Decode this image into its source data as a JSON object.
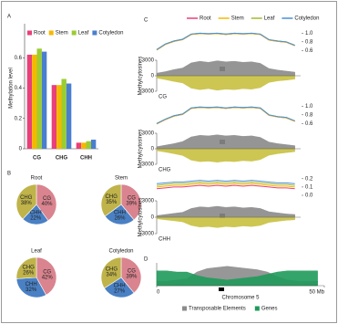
{
  "chart_data": [
    {
      "type": "bar",
      "panel": "A",
      "ylabel": "Methylation level",
      "categories": [
        "CG",
        "CHG",
        "CHH"
      ],
      "series": [
        {
          "name": "Root",
          "color": "#e8407a",
          "values": [
            0.62,
            0.42,
            0.04
          ]
        },
        {
          "name": "Stem",
          "color": "#f5b800",
          "values": [
            0.62,
            0.42,
            0.04
          ]
        },
        {
          "name": "Leaf",
          "color": "#9acd32",
          "values": [
            0.66,
            0.46,
            0.05
          ]
        },
        {
          "name": "Cotyledon",
          "color": "#4a7fcf",
          "values": [
            0.64,
            0.43,
            0.06
          ]
        }
      ],
      "ylim": [
        0,
        0.8
      ],
      "yticks": [
        0,
        0.2,
        0.4,
        0.6
      ]
    },
    {
      "type": "pie",
      "panel": "B",
      "title": "Root",
      "categories": [
        "CG",
        "CHH",
        "CHG"
      ],
      "values": [
        40,
        22,
        38
      ],
      "value_labels": [
        "40%",
        "22%",
        "38%"
      ],
      "colors": [
        "#d9848f",
        "#4a80c4",
        "#bfb34a"
      ]
    },
    {
      "type": "pie",
      "title": "Stem",
      "categories": [
        "CG",
        "CHH",
        "CHG"
      ],
      "values": [
        39,
        26,
        35
      ],
      "value_labels": [
        "39%",
        "26%",
        "35%"
      ],
      "colors": [
        "#d9848f",
        "#4a80c4",
        "#bfb34a"
      ]
    },
    {
      "type": "pie",
      "title": "Leaf",
      "categories": [
        "CG",
        "CHH",
        "CHG"
      ],
      "values": [
        42,
        32,
        26
      ],
      "value_labels": [
        "42%",
        "32%",
        "26%"
      ],
      "colors": [
        "#d9848f",
        "#4a80c4",
        "#bfb34a"
      ]
    },
    {
      "type": "pie",
      "title": "Cotyledon",
      "categories": [
        "CG",
        "CHH",
        "CHG"
      ],
      "values": [
        39,
        27,
        34
      ],
      "value_labels": [
        "39%",
        "27%",
        "34%"
      ],
      "colors": [
        "#d9848f",
        "#4a80c4",
        "#bfb34a"
      ]
    },
    {
      "type": "line",
      "panel": "C",
      "x": [
        0,
        3,
        6,
        9,
        12,
        15,
        18,
        21,
        24,
        27,
        30,
        33,
        36,
        39,
        42,
        45,
        48
      ],
      "xlim": [
        0,
        50
      ],
      "series": [
        {
          "name": "Root",
          "color": "#e8407a",
          "values": [
            0.61,
            0.74,
            0.81,
            0.85,
            0.97,
            0.99,
            0.98,
            0.99,
            0.97,
            0.99,
            0.98,
            0.99,
            0.97,
            0.84,
            0.81,
            0.79,
            0.71
          ]
        },
        {
          "name": "Stem",
          "color": "#f5b800",
          "values": [
            0.61,
            0.74,
            0.81,
            0.85,
            0.97,
            0.99,
            0.98,
            0.99,
            0.97,
            0.99,
            0.98,
            0.99,
            0.97,
            0.84,
            0.81,
            0.79,
            0.71
          ]
        },
        {
          "name": "Leaf",
          "color": "#a8b830",
          "values": [
            0.62,
            0.75,
            0.82,
            0.86,
            0.98,
            1.0,
            0.99,
            1.0,
            0.98,
            1.0,
            0.99,
            1.0,
            0.98,
            0.85,
            0.82,
            0.8,
            0.72
          ]
        },
        {
          "name": "Cotyledon",
          "color": "#4a8fd9",
          "values": [
            0.62,
            0.75,
            0.82,
            0.86,
            0.98,
            1.0,
            0.99,
            1.0,
            0.98,
            1.0,
            0.99,
            1.0,
            0.98,
            0.85,
            0.82,
            0.8,
            0.72
          ]
        }
      ],
      "ylim": [
        0.5,
        1.05
      ],
      "yticks": [
        0.6,
        0.8,
        {
          "value": 1,
          "label": "1.0"
        }
      ]
    },
    {
      "type": "area",
      "title": "CG",
      "ylabel": "Methylcytosines",
      "x": [
        0,
        3,
        6,
        9,
        12,
        15,
        18,
        21,
        24,
        27,
        30,
        33,
        36,
        39,
        42,
        45,
        48
      ],
      "xlim": [
        0,
        50
      ],
      "series": [
        {
          "color": "#8a8a8a",
          "values": [
            500,
            800,
            1200,
            1500,
            2500,
            2800,
            2600,
            2900,
            2700,
            2800,
            2600,
            2700,
            2400,
            1400,
            1100,
            900,
            700
          ]
        },
        {
          "color": "#c8c040",
          "values": [
            -450,
            -750,
            -1100,
            -1400,
            -2400,
            -2700,
            -2500,
            -2800,
            -2600,
            -2700,
            -2500,
            -2600,
            -2300,
            -1300,
            -1000,
            -850,
            -650
          ]
        }
      ],
      "ylim": [
        -3000,
        3000
      ],
      "yticks": [
        3000,
        0,
        -3000
      ]
    },
    {
      "type": "line",
      "x": [
        0,
        3,
        6,
        9,
        12,
        15,
        18,
        21,
        24,
        27,
        30,
        33,
        36,
        39,
        42,
        45,
        48
      ],
      "xlim": [
        0,
        50
      ],
      "series": [
        {
          "color": "#e8407a",
          "values": [
            0.59,
            0.69,
            0.77,
            0.81,
            0.95,
            0.97,
            0.96,
            0.97,
            0.95,
            0.97,
            0.96,
            0.97,
            0.95,
            0.79,
            0.75,
            0.73,
            0.65
          ]
        },
        {
          "color": "#f5b800",
          "values": [
            0.59,
            0.69,
            0.77,
            0.81,
            0.95,
            0.97,
            0.96,
            0.97,
            0.95,
            0.97,
            0.96,
            0.97,
            0.95,
            0.79,
            0.75,
            0.73,
            0.65
          ]
        },
        {
          "color": "#a8b830",
          "values": [
            0.6,
            0.7,
            0.78,
            0.82,
            0.96,
            0.98,
            0.97,
            0.98,
            0.96,
            0.98,
            0.97,
            0.98,
            0.96,
            0.8,
            0.76,
            0.74,
            0.66
          ]
        },
        {
          "color": "#4a8fd9",
          "values": [
            0.6,
            0.7,
            0.78,
            0.82,
            0.96,
            0.98,
            0.97,
            0.98,
            0.96,
            0.98,
            0.97,
            0.98,
            0.96,
            0.8,
            0.76,
            0.74,
            0.66
          ]
        }
      ],
      "ylim": [
        0.5,
        1.05
      ],
      "yticks": [
        0.6,
        0.8,
        {
          "value": 1,
          "label": "1.0"
        }
      ]
    },
    {
      "type": "area",
      "title": "CHG",
      "ylabel": "Methylcytosines",
      "x": [
        0,
        3,
        6,
        9,
        12,
        15,
        18,
        21,
        24,
        27,
        30,
        33,
        36,
        39,
        42,
        45,
        48
      ],
      "xlim": [
        0,
        50
      ],
      "series": [
        {
          "color": "#8a8a8a",
          "values": [
            400,
            700,
            1000,
            1400,
            2300,
            2600,
            2500,
            2700,
            2500,
            2600,
            2400,
            2500,
            2200,
            1300,
            1000,
            800,
            600
          ]
        },
        {
          "color": "#c8c040",
          "values": [
            -380,
            -650,
            -950,
            -1300,
            -2200,
            -2500,
            -2400,
            -2600,
            -2400,
            -2500,
            -2300,
            -2400,
            -2100,
            -1250,
            -950,
            -750,
            -560
          ]
        }
      ],
      "ylim": [
        -3000,
        3000
      ],
      "yticks": [
        3000,
        0,
        -3000
      ]
    },
    {
      "type": "line",
      "x": [
        0,
        3,
        6,
        9,
        12,
        15,
        18,
        21,
        24,
        27,
        30,
        33,
        36,
        39,
        42,
        45,
        48
      ],
      "xlim": [
        0,
        50
      ],
      "series": [
        {
          "color": "#e8407a",
          "values": [
            0.08,
            0.09,
            0.1,
            0.1,
            0.11,
            0.12,
            0.11,
            0.12,
            0.11,
            0.12,
            0.11,
            0.12,
            0.11,
            0.1,
            0.09,
            0.09,
            0.08
          ]
        },
        {
          "color": "#f5b800",
          "values": [
            0.1,
            0.11,
            0.12,
            0.12,
            0.13,
            0.14,
            0.13,
            0.14,
            0.13,
            0.14,
            0.13,
            0.14,
            0.13,
            0.12,
            0.11,
            0.11,
            0.1
          ]
        },
        {
          "color": "#a8b830",
          "values": [
            0.12,
            0.13,
            0.14,
            0.14,
            0.15,
            0.16,
            0.15,
            0.16,
            0.15,
            0.16,
            0.15,
            0.16,
            0.15,
            0.14,
            0.13,
            0.13,
            0.12
          ]
        },
        {
          "color": "#4a8fd9",
          "values": [
            0.14,
            0.15,
            0.16,
            0.16,
            0.17,
            0.18,
            0.17,
            0.18,
            0.17,
            0.18,
            0.17,
            0.18,
            0.17,
            0.16,
            0.15,
            0.15,
            0.14
          ]
        }
      ],
      "ylim": [
        0,
        0.22
      ],
      "yticks": [
        {
          "value": 0,
          "label": "0.0"
        },
        0.1,
        0.2
      ]
    },
    {
      "type": "area",
      "title": "CHH",
      "ylabel": "Methylcytosines",
      "x": [
        0,
        3,
        6,
        9,
        12,
        15,
        18,
        21,
        24,
        27,
        30,
        33,
        36,
        39,
        42,
        45,
        48
      ],
      "xlim": [
        0,
        50
      ],
      "series": [
        {
          "color": "#8a8a8a",
          "values": [
            300,
            500,
            700,
            900,
            1600,
            1900,
            1800,
            2000,
            1800,
            1900,
            1700,
            1800,
            1600,
            1000,
            800,
            600,
            500
          ]
        },
        {
          "color": "#c8c040",
          "values": [
            -280,
            -480,
            -650,
            -850,
            -1500,
            -1800,
            -1700,
            -1900,
            -1700,
            -1800,
            -1600,
            -1700,
            -1500,
            -950,
            -750,
            -560,
            -470
          ]
        }
      ],
      "ylim": [
        -3000,
        3000
      ],
      "yticks": [
        3000,
        0,
        -3000
      ]
    },
    {
      "type": "area",
      "panel": "D",
      "xlabel": "Chromosome 5",
      "x": [
        0,
        3,
        6,
        9,
        12,
        15,
        18,
        21,
        24,
        27,
        30,
        33,
        36,
        39,
        42,
        45,
        48
      ],
      "xlim": [
        0,
        50
      ],
      "series": [
        {
          "name": "Transposable Elements",
          "color": "#8c8c8c",
          "values": [
            4,
            4,
            5,
            6,
            12,
            15,
            16,
            17,
            16,
            15,
            14,
            12,
            8,
            5,
            4,
            4,
            4
          ]
        },
        {
          "name": "Genes",
          "color": "#1f9a5a",
          "values": [
            13,
            13,
            12,
            12,
            9,
            7,
            6,
            5,
            6,
            7,
            8,
            10,
            12,
            13,
            13,
            13,
            13
          ]
        }
      ],
      "ylim": [
        0,
        20
      ],
      "xticks": [
        0,
        {
          "value": 50,
          "label": "50 Mb"
        }
      ]
    }
  ]
}
